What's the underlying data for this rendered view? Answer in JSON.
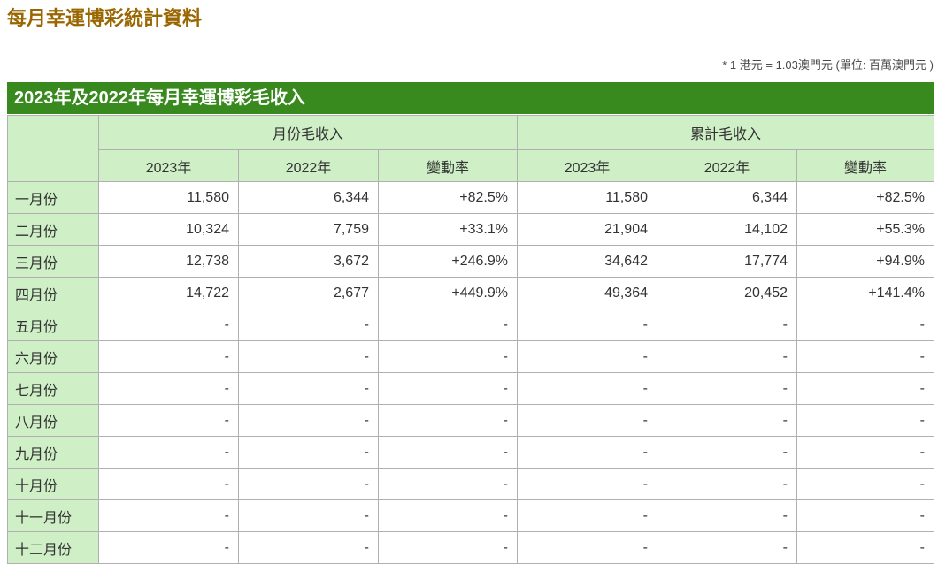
{
  "page": {
    "title": "每月幸運博彩統計資料",
    "note": "* 1 港元 = 1.03澳門元 (單位: 百萬澳門元 )",
    "caption": "2023年及2022年每月幸運博彩毛收入"
  },
  "colors": {
    "title_text": "#996600",
    "caption_bg": "#388a1e",
    "caption_text": "#ffffff",
    "header_cell_bg": "#cfefc6",
    "border": "#b0b0b0",
    "body_text": "#333333"
  },
  "table": {
    "groups": [
      "月份毛收入",
      "累計毛收入"
    ],
    "sub_headers": [
      "2023年",
      "2022年",
      "變動率",
      "2023年",
      "2022年",
      "變動率"
    ],
    "rows": [
      {
        "month": "一月份",
        "cells": [
          "11,580",
          "6,344",
          "+82.5%",
          "11,580",
          "6,344",
          "+82.5%"
        ]
      },
      {
        "month": "二月份",
        "cells": [
          "10,324",
          "7,759",
          "+33.1%",
          "21,904",
          "14,102",
          "+55.3%"
        ]
      },
      {
        "month": "三月份",
        "cells": [
          "12,738",
          "3,672",
          "+246.9%",
          "34,642",
          "17,774",
          "+94.9%"
        ]
      },
      {
        "month": "四月份",
        "cells": [
          "14,722",
          "2,677",
          "+449.9%",
          "49,364",
          "20,452",
          "+141.4%"
        ]
      },
      {
        "month": "五月份",
        "cells": [
          "-",
          "-",
          "-",
          "-",
          "-",
          "-"
        ]
      },
      {
        "month": "六月份",
        "cells": [
          "-",
          "-",
          "-",
          "-",
          "-",
          "-"
        ]
      },
      {
        "month": "七月份",
        "cells": [
          "-",
          "-",
          "-",
          "-",
          "-",
          "-"
        ]
      },
      {
        "month": "八月份",
        "cells": [
          "-",
          "-",
          "-",
          "-",
          "-",
          "-"
        ]
      },
      {
        "month": "九月份",
        "cells": [
          "-",
          "-",
          "-",
          "-",
          "-",
          "-"
        ]
      },
      {
        "month": "十月份",
        "cells": [
          "-",
          "-",
          "-",
          "-",
          "-",
          "-"
        ]
      },
      {
        "month": "十一月份",
        "cells": [
          "-",
          "-",
          "-",
          "-",
          "-",
          "-"
        ]
      },
      {
        "month": "十二月份",
        "cells": [
          "-",
          "-",
          "-",
          "-",
          "-",
          "-"
        ]
      }
    ]
  }
}
